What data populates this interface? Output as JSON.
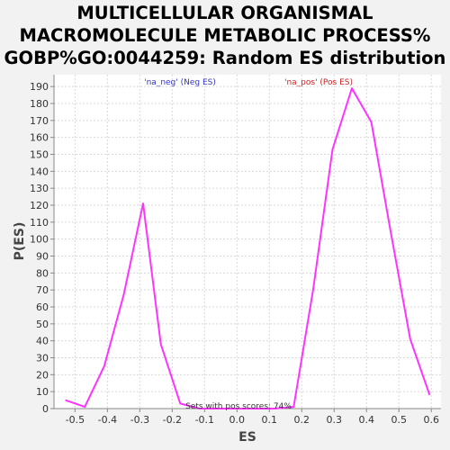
{
  "chart_data": {
    "type": "line",
    "title_lines": [
      "MULTICELLULAR ORGANISMAL",
      "MACROMOLECULE METABOLIC PROCESS%",
      "GOBP%GO:0044259: Random ES distribution"
    ],
    "xlabel": "ES",
    "ylabel": "P(ES)",
    "xlim": [
      -0.565,
      0.63
    ],
    "ylim": [
      0,
      197
    ],
    "xticks": [
      "-0.5",
      "-0.4",
      "-0.3",
      "-0.2",
      "-0.1",
      "0.0",
      "0.1",
      "0.2",
      "0.3",
      "0.4",
      "0.5",
      "0.6"
    ],
    "yticks": [
      "0",
      "10",
      "20",
      "30",
      "40",
      "50",
      "60",
      "70",
      "80",
      "90",
      "100",
      "110",
      "120",
      "130",
      "140",
      "150",
      "160",
      "170",
      "180",
      "190"
    ],
    "grid": true,
    "line_color": "#ff33ff",
    "series": [
      {
        "x": [
          -0.53,
          -0.47,
          -0.41,
          -0.35,
          -0.29,
          -0.235,
          -0.175,
          -0.115,
          -0.06,
          0.0,
          0.06,
          0.115,
          0.175,
          0.235,
          0.295,
          0.355,
          0.415,
          0.475,
          0.535,
          0.595
        ],
        "y": [
          5,
          1,
          25,
          67,
          121,
          38,
          3,
          0,
          0,
          0,
          0,
          0,
          1,
          70,
          153,
          189,
          169,
          104,
          41,
          8
        ]
      }
    ],
    "annotations": {
      "neg_label": "'na_neg' (Neg ES)",
      "pos_label": "'na_pos' (Pos ES)",
      "pos_scores": "Sets with pos scores: 74%"
    },
    "annotation_colors": {
      "neg": "#3333cc",
      "pos": "#cc2222",
      "note": "#333333"
    }
  }
}
